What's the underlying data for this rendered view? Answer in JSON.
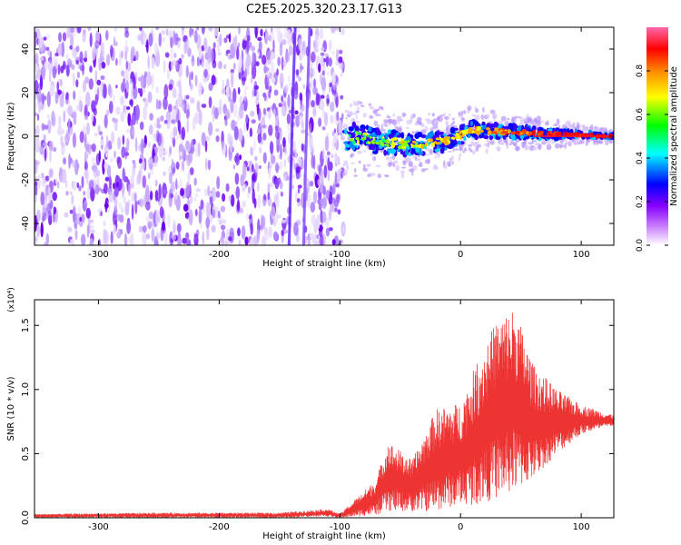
{
  "title": "C2E5.2025.320.23.17.G13",
  "chart_data": [
    {
      "type": "heatmap",
      "title": "C2E5.2025.320.23.17.G13",
      "xlabel": "Height of straight line (km)",
      "ylabel": "Frequency (Hz)",
      "xlim": [
        -353,
        127
      ],
      "ylim": [
        -50,
        50
      ],
      "xticks": [
        -300,
        -200,
        -100,
        0,
        100
      ],
      "yticks": [
        -40,
        -20,
        0,
        20,
        40
      ],
      "noise_region_x": [
        -353,
        -97
      ],
      "signal_region_x": [
        -97,
        127
      ],
      "signal_center_freq": [
        {
          "x": -95,
          "y": 0
        },
        {
          "x": -70,
          "y": -2
        },
        {
          "x": -40,
          "y": -4
        },
        {
          "x": -10,
          "y": -2
        },
        {
          "x": 10,
          "y": 3
        },
        {
          "x": 40,
          "y": 2
        },
        {
          "x": 80,
          "y": 1
        },
        {
          "x": 127,
          "y": 0
        }
      ],
      "colorbar": {
        "label": "Normalized spectral amplitude",
        "range": [
          0,
          1
        ],
        "ticks": [
          0.0,
          0.2,
          0.4,
          0.6,
          0.8
        ],
        "tick_labels": [
          "0.0",
          "0.2",
          "0.4",
          "0.6",
          "0.8"
        ],
        "colors": [
          "#ffffff",
          "#8800ff",
          "#0000ff",
          "#00ffff",
          "#00ff00",
          "#ffff00",
          "#ff8800",
          "#ff0000",
          "#ff66aa"
        ]
      }
    },
    {
      "type": "line",
      "xlabel": "Height of straight line (km)",
      "ylabel": "SNR (10 * v/v)",
      "yscale_label": "(x10⁴)",
      "xlim": [
        -353,
        127
      ],
      "ylim": [
        0,
        1.7
      ],
      "xticks": [
        -300,
        -200,
        -100,
        0,
        100
      ],
      "yticks": [
        0.0,
        0.5,
        1.0,
        1.5
      ],
      "ytick_labels": [
        "0.0",
        "0.5",
        "1.0",
        "1.5"
      ],
      "series": [
        {
          "name": "SNR",
          "color": "#ee3333",
          "envelope": [
            {
              "x": -353,
              "lo": 0.0,
              "hi": 0.03
            },
            {
              "x": -250,
              "lo": 0.0,
              "hi": 0.04
            },
            {
              "x": -150,
              "lo": 0.0,
              "hi": 0.04
            },
            {
              "x": -110,
              "lo": 0.01,
              "hi": 0.07
            },
            {
              "x": -100,
              "lo": 0.0,
              "hi": 0.03
            },
            {
              "x": -70,
              "lo": 0.02,
              "hi": 0.3
            },
            {
              "x": -60,
              "lo": 0.05,
              "hi": 0.6
            },
            {
              "x": -40,
              "lo": 0.05,
              "hi": 0.45
            },
            {
              "x": -20,
              "lo": 0.05,
              "hi": 0.85
            },
            {
              "x": 0,
              "lo": 0.1,
              "hi": 0.9
            },
            {
              "x": 15,
              "lo": 0.1,
              "hi": 1.25
            },
            {
              "x": 30,
              "lo": 0.15,
              "hi": 1.55
            },
            {
              "x": 45,
              "lo": 0.2,
              "hi": 1.65
            },
            {
              "x": 60,
              "lo": 0.3,
              "hi": 1.2
            },
            {
              "x": 80,
              "lo": 0.5,
              "hi": 1.0
            },
            {
              "x": 100,
              "lo": 0.65,
              "hi": 0.88
            },
            {
              "x": 127,
              "lo": 0.72,
              "hi": 0.8
            }
          ]
        }
      ]
    }
  ]
}
